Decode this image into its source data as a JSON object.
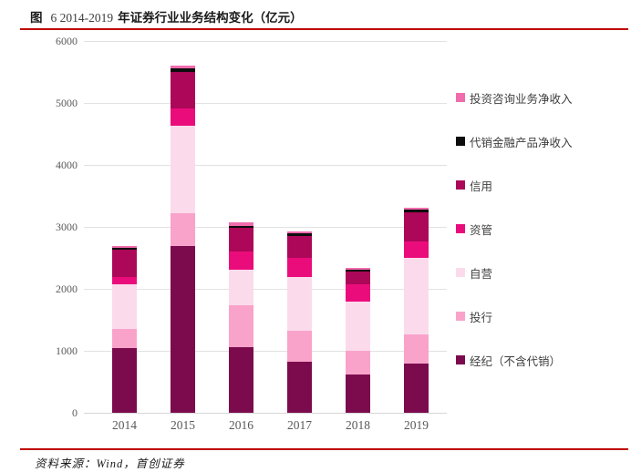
{
  "title": {
    "prefix": "图",
    "number": "6 2014-2019",
    "text": "年证券行业业务结构变化（亿元）"
  },
  "source": "资料来源：Wind，首创证券",
  "colors": {
    "accent_red": "#c00000",
    "grid": "#e2e2e2",
    "axis_text": "#595959"
  },
  "chart_data": {
    "type": "bar",
    "stacked": true,
    "title": "图 6 2014-2019 年证券行业业务结构变化（亿元）",
    "unit": "亿元",
    "categories": [
      "2014",
      "2015",
      "2016",
      "2017",
      "2018",
      "2019"
    ],
    "series": [
      {
        "name": "经纪（不含代销）",
        "color": "#7c0b4e",
        "values": [
          1049,
          2691,
          1053,
          821,
          623,
          788
        ]
      },
      {
        "name": "投行",
        "color": "#f9a3cb",
        "values": [
          309,
          531,
          684,
          510,
          370,
          483
        ]
      },
      {
        "name": "自营",
        "color": "#fbdbeb",
        "values": [
          710,
          1414,
          568,
          861,
          800,
          1222
        ]
      },
      {
        "name": "资管",
        "color": "#eb0c7c",
        "values": [
          124,
          275,
          296,
          310,
          275,
          275
        ]
      },
      {
        "name": "信用",
        "color": "#ac0758",
        "values": [
          446,
          591,
          382,
          348,
          215,
          464
        ]
      },
      {
        "name": "代销金融产品净收入",
        "color": "#0d0d0d",
        "values": [
          30,
          53,
          37,
          44,
          28,
          44
        ]
      },
      {
        "name": "投资咨询业务净收入",
        "color": "#f06cad",
        "values": [
          22,
          45,
          51,
          34,
          32,
          38
        ]
      }
    ],
    "legend_top_to_bottom": [
      "投资咨询业务净收入",
      "代销金融产品净收入",
      "信用",
      "资管",
      "自营",
      "投行",
      "经纪（不含代销）"
    ],
    "ylim": [
      0,
      6000
    ],
    "yticks": [
      0,
      1000,
      2000,
      3000,
      4000,
      5000,
      6000
    ],
    "grid": true,
    "legend_position": "right"
  }
}
